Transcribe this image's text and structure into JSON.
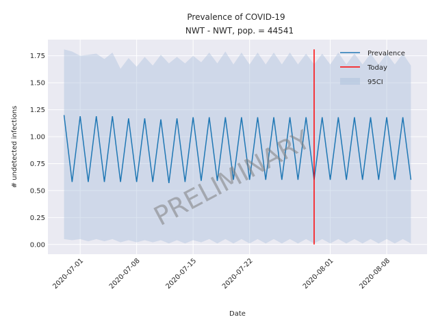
{
  "chart_data": {
    "type": "line",
    "title_line1": "Prevalence of COVID-19",
    "title_line2": "NWT - NWT, pop. = 44541",
    "xlabel": "Date",
    "ylabel": "# undetected infections",
    "x_start": "2020-06-29",
    "x_end": "2020-08-11",
    "xlim": [
      "2020-06-27",
      "2020-08-13"
    ],
    "ylim": [
      -0.09,
      1.9
    ],
    "x_ticks": [
      "2020-07-01",
      "2020-07-08",
      "2020-07-15",
      "2020-07-22",
      "2020-08-01",
      "2020-08-08"
    ],
    "y_ticks": [
      "0.00",
      "0.25",
      "0.50",
      "0.75",
      "1.00",
      "1.25",
      "1.50",
      "1.75"
    ],
    "y_tick_values": [
      0,
      0.25,
      0.5,
      0.75,
      1.0,
      1.25,
      1.5,
      1.75
    ],
    "series": [
      {
        "name": "Prevalence",
        "color": "#1f77b4",
        "values": [
          1.2,
          0.58,
          1.19,
          0.58,
          1.19,
          0.58,
          1.19,
          0.58,
          1.17,
          0.58,
          1.17,
          0.58,
          1.16,
          0.57,
          1.17,
          0.58,
          1.18,
          0.59,
          1.18,
          0.59,
          1.18,
          0.6,
          1.18,
          0.6,
          1.18,
          0.6,
          1.18,
          0.6,
          1.18,
          0.6,
          1.18,
          0.6,
          1.18,
          0.6,
          1.18,
          0.6,
          1.18,
          0.6,
          1.18,
          0.6,
          1.18,
          0.6,
          1.18,
          0.6
        ]
      }
    ],
    "ci": {
      "name": "95CI",
      "color": "#b0c4de",
      "upper": [
        1.81,
        1.79,
        1.75,
        1.76,
        1.77,
        1.72,
        1.78,
        1.63,
        1.73,
        1.65,
        1.74,
        1.66,
        1.76,
        1.68,
        1.74,
        1.68,
        1.75,
        1.69,
        1.78,
        1.68,
        1.79,
        1.67,
        1.78,
        1.67,
        1.78,
        1.67,
        1.78,
        1.67,
        1.78,
        1.67,
        1.77,
        1.67,
        1.77,
        1.67,
        1.78,
        1.67,
        1.77,
        1.67,
        1.77,
        1.67,
        1.77,
        1.67,
        1.77,
        1.66
      ],
      "lower": [
        0.05,
        0.04,
        0.05,
        0.03,
        0.05,
        0.03,
        0.05,
        0.02,
        0.04,
        0.02,
        0.04,
        0.02,
        0.04,
        0.01,
        0.04,
        0.01,
        0.04,
        0.02,
        0.05,
        0.01,
        0.05,
        0.01,
        0.05,
        0.01,
        0.05,
        0.01,
        0.05,
        0.01,
        0.05,
        0.01,
        0.05,
        0.01,
        0.05,
        0.01,
        0.05,
        0.01,
        0.05,
        0.01,
        0.05,
        0.01,
        0.05,
        0.01,
        0.05,
        0.01
      ]
    },
    "today": {
      "name": "Today",
      "date": "2020-07-30",
      "color": "#ff0000",
      "y_range": [
        0,
        1.81
      ]
    },
    "legend": {
      "placement": "top-right",
      "entries": [
        "Prevalence",
        "Today",
        "95CI"
      ]
    },
    "watermark": "PRELIMINARY",
    "grid": true,
    "background": "#eaeaf2"
  }
}
